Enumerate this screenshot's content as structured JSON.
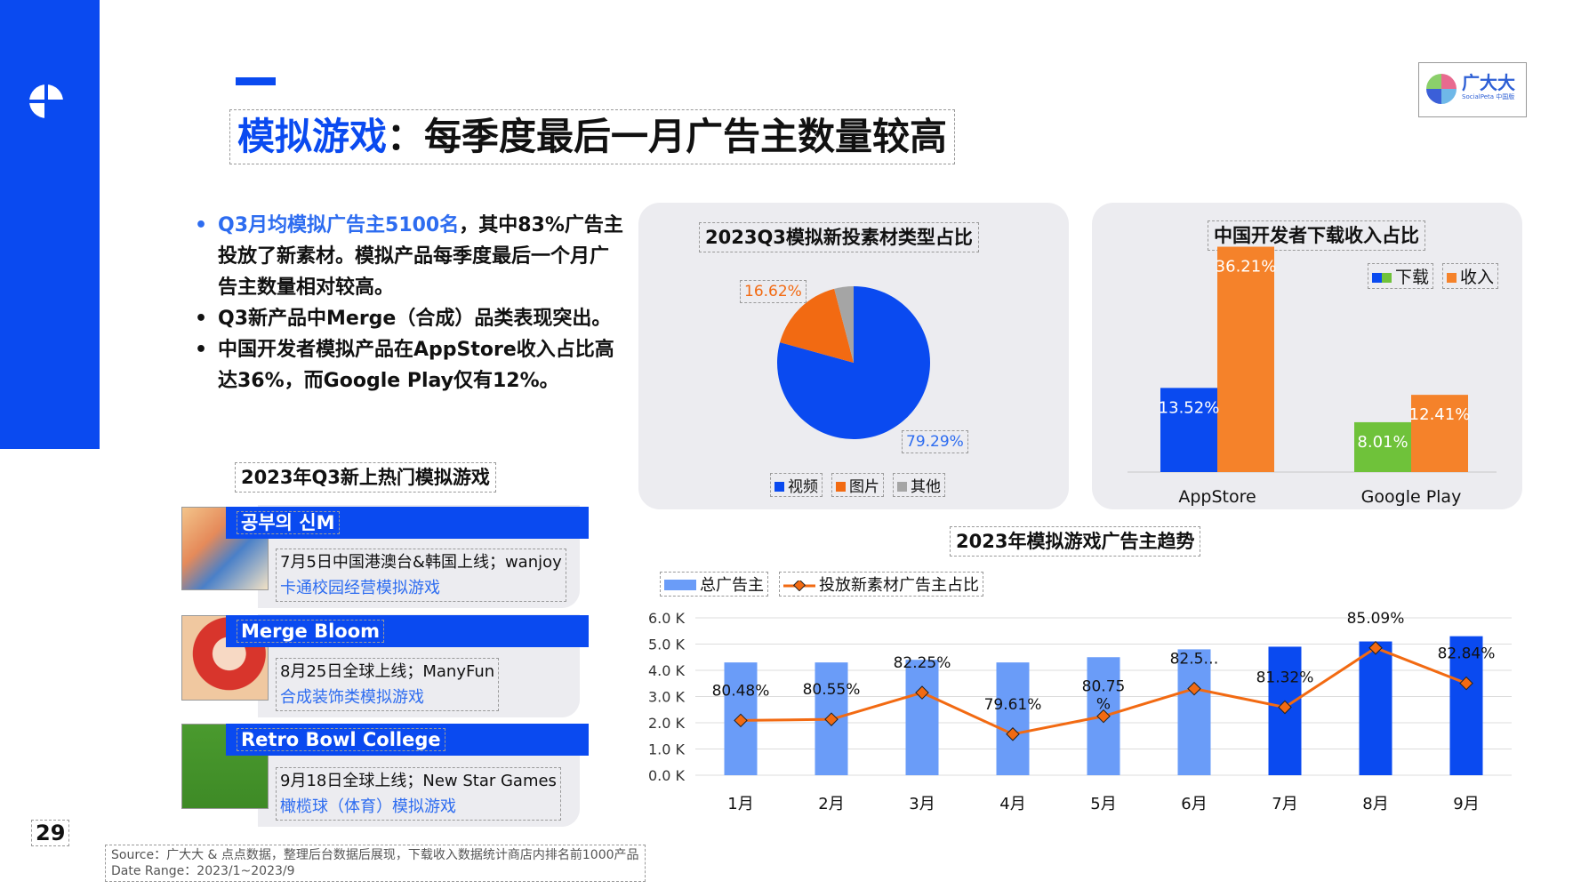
{
  "page": {
    "title_highlight": "模拟游戏",
    "title_rest": "：每季度最后一月广告主数量较高",
    "page_number": "29"
  },
  "brand": {
    "name": "广大大",
    "subtitle": "SocialPeta 中国版"
  },
  "bullets": [
    {
      "highlight": "Q3月均模拟广告主5100名",
      "text": "，其中83%广告主投放了新素材。模拟产品每季度最后一个月广告主数量相对较高。"
    },
    {
      "highlight": "",
      "text": "Q3新产品中Merge（合成）品类表现突出。"
    },
    {
      "highlight": "",
      "text": "中国开发者模拟产品在AppStore收入占比高达36%，而Google Play仅有12%。"
    }
  ],
  "games": {
    "section_title": "2023年Q3新上热门模拟游戏",
    "items": [
      {
        "name": "공부의 신M",
        "info": "7月5日中国港澳台&韩国上线；wanjoy",
        "category": "卡通校园经营模拟游戏"
      },
      {
        "name": "Merge Bloom",
        "info": "8月25日全球上线；ManyFun",
        "category": "合成装饰类模拟游戏"
      },
      {
        "name": "Retro Bowl College",
        "info": "9月18日全球上线；New Star Games",
        "category": "橄榄球（体育）模拟游戏"
      }
    ]
  },
  "source": {
    "line1": "Source：广大大 & 点点数据，整理后台数据后展现，下载收入数据统计商店内排名前1000产品",
    "line2": "Date Range：2023/1~2023/9"
  },
  "chart_data": [
    {
      "type": "pie",
      "title": "2023Q3模拟新投素材类型占比",
      "slices": [
        {
          "name": "视频",
          "value": 79.29,
          "color": "#0a4af0",
          "label": "79.29%"
        },
        {
          "name": "图片",
          "value": 16.62,
          "color": "#f26a12",
          "label": "16.62%"
        },
        {
          "name": "其他",
          "value": 4.09,
          "color": "#a5a5a5"
        }
      ],
      "legend": [
        "视频",
        "图片",
        "其他"
      ]
    },
    {
      "type": "bar",
      "title": "中国开发者下载收入占比",
      "categories": [
        "AppStore",
        "Google Play"
      ],
      "legend": [
        {
          "name": "下载",
          "colors": [
            "#0a4af0",
            "#6fc23a"
          ]
        },
        {
          "name": "收入",
          "color": "#f5822a"
        }
      ],
      "series": [
        {
          "name": "下载",
          "values": [
            13.52,
            8.01
          ],
          "labels": [
            "13.52%",
            "8.01%"
          ],
          "colors": [
            "#0a4af0",
            "#6fc23a"
          ]
        },
        {
          "name": "收入",
          "values": [
            36.21,
            12.41
          ],
          "labels": [
            "36.21%",
            "12.41%"
          ],
          "color": "#f5822a"
        }
      ],
      "ylim": [
        0,
        40
      ]
    },
    {
      "type": "bar",
      "title": "2023年模拟游戏广告主趋势",
      "categories": [
        "1月",
        "2月",
        "3月",
        "4月",
        "5月",
        "6月",
        "7月",
        "8月",
        "9月"
      ],
      "yticks": [
        "0.0 K",
        "1.0 K",
        "2.0 K",
        "3.0 K",
        "4.0 K",
        "5.0 K",
        "6.0 K"
      ],
      "ylim": [
        0,
        6000
      ],
      "series": [
        {
          "name": "总广告主",
          "values": [
            4300,
            4300,
            4400,
            4300,
            4500,
            4800,
            4900,
            5100,
            5300
          ],
          "colors": [
            "#6a9cf8",
            "#6a9cf8",
            "#6a9cf8",
            "#6a9cf8",
            "#6a9cf8",
            "#6a9cf8",
            "#0a4af0",
            "#0a4af0",
            "#0a4af0"
          ]
        },
        {
          "name": "投放新素材广告主占比",
          "type": "line",
          "color": "#f26a12",
          "values": [
            80.48,
            80.55,
            82.25,
            79.61,
            80.75,
            82.5,
            81.32,
            85.09,
            82.84
          ],
          "labels": [
            "80.48%",
            "80.55%",
            "82.25%",
            "79.61%",
            "80.75\n%",
            "82.5…",
            "81.32%",
            "85.09%",
            "82.84%"
          ]
        }
      ],
      "line_range": [
        77,
        87
      ]
    }
  ]
}
